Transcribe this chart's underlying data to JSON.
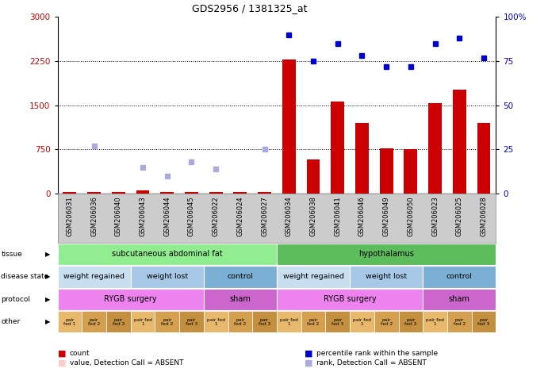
{
  "title": "GDS2956 / 1381325_at",
  "samples": [
    "GSM206031",
    "GSM206036",
    "GSM206040",
    "GSM206043",
    "GSM206044",
    "GSM206045",
    "GSM206022",
    "GSM206024",
    "GSM206027",
    "GSM206034",
    "GSM206038",
    "GSM206041",
    "GSM206046",
    "GSM206049",
    "GSM206050",
    "GSM206023",
    "GSM206025",
    "GSM206028"
  ],
  "count_values": [
    30,
    30,
    30,
    60,
    30,
    30,
    30,
    30,
    30,
    2280,
    580,
    1570,
    1200,
    770,
    760,
    1530,
    1760,
    1200
  ],
  "count_absent": [
    true,
    true,
    true,
    false,
    true,
    true,
    true,
    true,
    true,
    false,
    false,
    false,
    false,
    false,
    false,
    false,
    false,
    false
  ],
  "percentile_values": [
    null,
    null,
    null,
    null,
    null,
    null,
    null,
    null,
    null,
    90,
    75,
    85,
    78,
    72,
    72,
    85,
    88,
    77
  ],
  "rank_absent_values": [
    null,
    27,
    null,
    15,
    10,
    18,
    14,
    null,
    25,
    null,
    null,
    null,
    null,
    null,
    null,
    null,
    null,
    null
  ],
  "ylim_left": [
    0,
    3000
  ],
  "ylim_right": [
    0,
    100
  ],
  "yticks_left": [
    0,
    750,
    1500,
    2250,
    3000
  ],
  "yticks_right": [
    0,
    25,
    50,
    75,
    100
  ],
  "ytick_labels_right": [
    "0",
    "25",
    "50",
    "75",
    "100%"
  ],
  "tissue_labels": [
    {
      "text": "subcutaneous abdominal fat",
      "start": 0,
      "end": 8,
      "color": "#90EE90"
    },
    {
      "text": "hypothalamus",
      "start": 9,
      "end": 17,
      "color": "#5DBD5D"
    }
  ],
  "disease_state_labels": [
    {
      "text": "weight regained",
      "start": 0,
      "end": 2,
      "color": "#C8DFF0"
    },
    {
      "text": "weight lost",
      "start": 3,
      "end": 5,
      "color": "#A8C8E8"
    },
    {
      "text": "control",
      "start": 6,
      "end": 8,
      "color": "#7BAFD4"
    },
    {
      "text": "weight regained",
      "start": 9,
      "end": 11,
      "color": "#C8DFF0"
    },
    {
      "text": "weight lost",
      "start": 12,
      "end": 14,
      "color": "#A8C8E8"
    },
    {
      "text": "control",
      "start": 15,
      "end": 17,
      "color": "#7BAFD4"
    }
  ],
  "protocol_labels": [
    {
      "text": "RYGB surgery",
      "start": 0,
      "end": 5,
      "color": "#EE82EE"
    },
    {
      "text": "sham",
      "start": 6,
      "end": 8,
      "color": "#CC66CC"
    },
    {
      "text": "RYGB surgery",
      "start": 9,
      "end": 14,
      "color": "#EE82EE"
    },
    {
      "text": "sham",
      "start": 15,
      "end": 17,
      "color": "#CC66CC"
    }
  ],
  "other_labels": [
    "pair\nfed 1",
    "pair\nfed 2",
    "pair\nfed 3",
    "pair fed\n1",
    "pair\nfed 2",
    "pair\nfed 3",
    "pair fed\n1",
    "pair\nfed 2",
    "pair\nfed 3",
    "pair fed\n1",
    "pair\nfed 2",
    "pair\nfed 3",
    "pair fed\n1",
    "pair\nfed 2",
    "pair\nfed 3",
    "pair fed\n1",
    "pair\nfed 2",
    "pair\nfed 3"
  ],
  "bar_color": "#CC0000",
  "dot_color": "#0000CC",
  "rank_absent_color": "#AAAADD",
  "value_absent_color": "#FFCCCC",
  "legend_labels": [
    "count",
    "percentile rank within the sample",
    "value, Detection Call = ABSENT",
    "rank, Detection Call = ABSENT"
  ],
  "legend_colors": [
    "#CC0000",
    "#0000CC",
    "#FFCCCC",
    "#AAAADD"
  ]
}
